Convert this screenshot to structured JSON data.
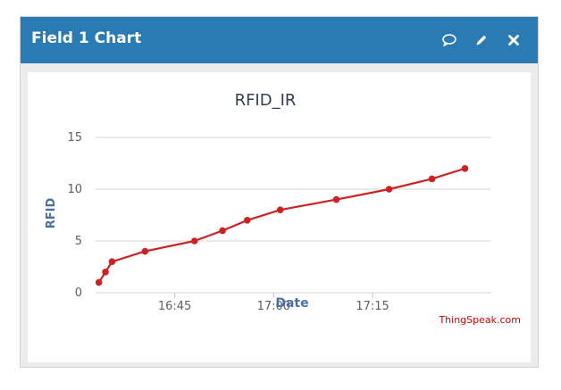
{
  "window": {
    "title": "Field 1 Chart",
    "icons": [
      "comment-icon",
      "pencil-icon",
      "close-icon"
    ]
  },
  "credit": "ThingSpeak.com",
  "colors": {
    "titlebar": "#2a7ab3",
    "series": "#cc2222",
    "axis_label": "#4a6fa5",
    "credit": "#cc0000"
  },
  "chart_data": {
    "type": "line",
    "title": "RFID_IR",
    "xlabel": "Date",
    "ylabel": "RFID",
    "ylim": [
      0,
      15
    ],
    "yticks": [
      0,
      5,
      10,
      15
    ],
    "xlim": [
      "16:33",
      "17:33"
    ],
    "xticks": [
      "16:45",
      "17:00",
      "17:15"
    ],
    "grid": true,
    "series": [
      {
        "x": [
          "16:33:30",
          "16:34:30",
          "16:35:30",
          "16:40:30",
          "16:48:00",
          "16:52:15",
          "16:56:00",
          "17:01:00",
          "17:09:30",
          "17:17:30",
          "17:24:00",
          "17:29:00"
        ],
        "y": [
          1,
          2,
          3,
          4,
          5,
          6,
          7,
          8,
          9,
          10,
          11,
          12
        ]
      }
    ]
  }
}
